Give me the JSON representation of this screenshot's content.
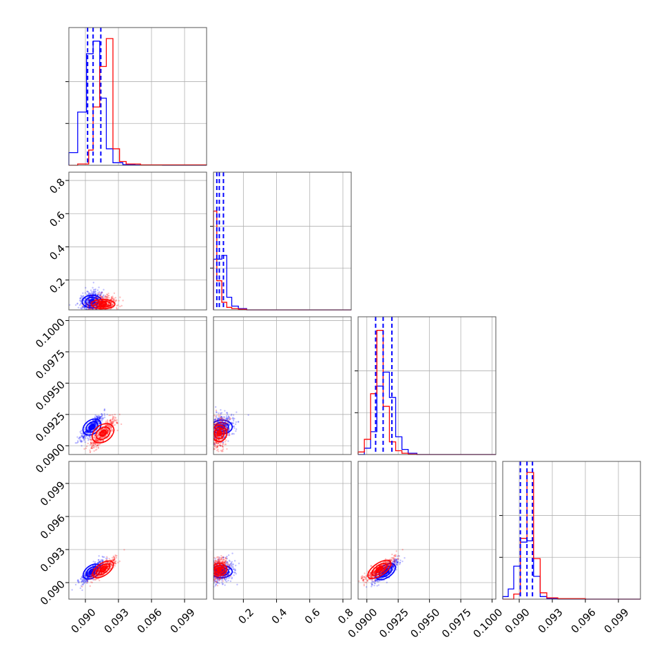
{
  "chart_data": {
    "type": "scatter",
    "title": "",
    "layout": "corner plot (4 parameters, lower triangle)",
    "series": [
      {
        "name": "",
        "color": "#0000ff"
      },
      {
        "name": "",
        "color": "#ff0000"
      }
    ],
    "grid": true,
    "params": [
      {
        "xlim": [
          0.0885,
          0.101
        ],
        "ticks": [
          0.09,
          0.093,
          0.096,
          0.099
        ],
        "tick_labels": [
          "0.090",
          "0.093",
          "0.096",
          "0.099"
        ]
      },
      {
        "xlim": [
          0.02,
          0.85
        ],
        "ticks": [
          0.2,
          0.4,
          0.6,
          0.8
        ],
        "tick_labels": [
          "0.2",
          "0.4",
          "0.6",
          "0.8"
        ]
      },
      {
        "xlim": [
          0.0893,
          0.1003
        ],
        "ticks": [
          0.09,
          0.0925,
          0.095,
          0.0975,
          0.1
        ],
        "tick_labels": [
          "0.0900",
          "0.0925",
          "0.0950",
          "0.0975",
          "0.1000"
        ]
      },
      {
        "xlim": [
          0.0885,
          0.101
        ],
        "ticks": [
          0.09,
          0.093,
          0.096,
          0.099
        ],
        "tick_labels": [
          "0.090",
          "0.093",
          "0.096",
          "0.099"
        ]
      }
    ],
    "histograms": [
      {
        "blue": {
          "edges": [
            0.0885,
            0.0893,
            0.0901,
            0.0907,
            0.0913,
            0.0919,
            0.0925,
            0.0934,
            0.0945,
            0.097,
            0.101
          ],
          "counts": [
            0.1,
            0.42,
            0.88,
            0.98,
            0.53,
            0.13,
            0.02,
            0.005,
            0.002,
            0
          ]
        },
        "red": {
          "edges": [
            0.0885,
            0.0893,
            0.0903,
            0.0907,
            0.0913,
            0.0919,
            0.0925,
            0.0931,
            0.0937,
            0.095,
            0.101
          ],
          "counts": [
            0.0,
            0.01,
            0.12,
            0.46,
            0.78,
            1.0,
            0.13,
            0.03,
            0.01,
            0.003
          ]
        },
        "quantiles": [
          0.0902,
          0.0907,
          0.0914
        ]
      },
      {
        "blue": {
          "edges": [
            0.02,
            0.04,
            0.07,
            0.1,
            0.13,
            0.17,
            0.22,
            0.85
          ],
          "counts": [
            0.4,
            0.4,
            0.43,
            0.1,
            0.03,
            0.01,
            0.0
          ]
        },
        "red": {
          "edges": [
            0.02,
            0.04,
            0.07,
            0.1,
            0.13,
            0.17,
            0.22,
            0.85
          ],
          "counts": [
            0.78,
            0.23,
            0.06,
            0.02,
            0.01,
            0.005,
            0.0
          ]
        },
        "quantiles": [
          0.04,
          0.055,
          0.08
        ]
      },
      {
        "blue": {
          "edges": [
            0.0893,
            0.0898,
            0.0903,
            0.0908,
            0.0913,
            0.0918,
            0.0923,
            0.0928,
            0.0933,
            0.094,
            0.1003
          ],
          "counts": [
            0.0,
            0.05,
            0.18,
            0.54,
            0.65,
            0.45,
            0.14,
            0.04,
            0.01,
            0.0
          ]
        },
        "red": {
          "edges": [
            0.0893,
            0.0898,
            0.0903,
            0.0908,
            0.0913,
            0.0918,
            0.0923,
            0.0928,
            0.0933,
            0.094,
            0.1003
          ],
          "counts": [
            0.02,
            0.12,
            0.48,
            0.98,
            0.38,
            0.1,
            0.03,
            0.01,
            0.003,
            0.0
          ]
        },
        "quantiles": [
          0.0907,
          0.0913,
          0.092
        ]
      },
      {
        "blue": {
          "edges": [
            0.0885,
            0.089,
            0.0895,
            0.0901,
            0.0907,
            0.0913,
            0.0919,
            0.0925,
            0.0935,
            0.101
          ],
          "counts": [
            0.02,
            0.08,
            0.26,
            0.45,
            0.46,
            0.18,
            0.02,
            0.005,
            0.0
          ]
        },
        "red": {
          "edges": [
            0.0885,
            0.0895,
            0.0901,
            0.0907,
            0.0913,
            0.0919,
            0.0925,
            0.0935,
            0.096,
            0.101
          ],
          "counts": [
            0.0,
            0.04,
            0.48,
            1.0,
            0.32,
            0.05,
            0.01,
            0.004,
            0.0
          ]
        },
        "quantiles": [
          0.0901,
          0.0907,
          0.0912
        ]
      }
    ],
    "scatter_clusters": {
      "blue": {
        "center": [
          0.0906,
          0.07,
          0.0915,
          0.091
        ],
        "spread": [
          0.0005,
          0.035,
          0.0005,
          0.0005
        ]
      },
      "red": {
        "center": [
          0.0916,
          0.055,
          0.091,
          0.0912
        ],
        "spread": [
          0.0006,
          0.025,
          0.0006,
          0.0005
        ]
      }
    }
  }
}
